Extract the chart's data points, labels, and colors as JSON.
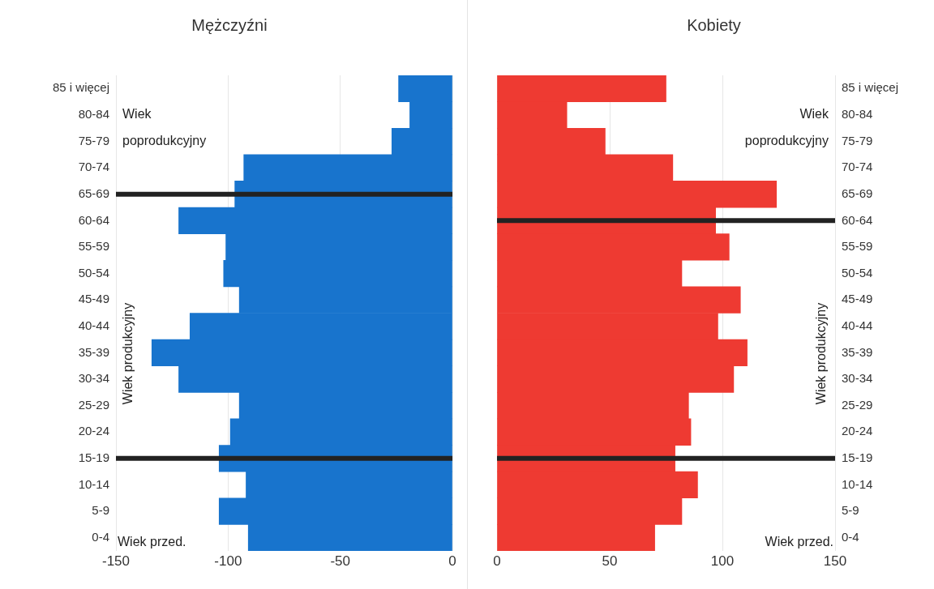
{
  "chart_data": [
    {
      "type": "bar",
      "orientation": "horizontal",
      "title": "Mężczyźni",
      "categories": [
        "85 i więcej",
        "80-84",
        "75-79",
        "70-74",
        "65-69",
        "60-64",
        "55-59",
        "50-54",
        "45-49",
        "40-44",
        "35-39",
        "30-34",
        "25-29",
        "20-24",
        "15-19",
        "10-14",
        "5-9",
        "0-4"
      ],
      "values": [
        -24,
        -19,
        -27,
        -93,
        -97,
        -122,
        -101,
        -102,
        -95,
        -117,
        -134,
        -122,
        -95,
        -99,
        -104,
        -92,
        -104,
        -91
      ],
      "color": "#1874cd",
      "xlim": [
        -150,
        0
      ],
      "xticks": [
        -150,
        -100,
        -50,
        0
      ],
      "grid": "x",
      "ref_lines": [
        {
          "axis": "y",
          "value": "65-69",
          "color": "#222222"
        },
        {
          "axis": "y",
          "value": "15-19",
          "color": "#222222"
        }
      ],
      "annotations": [
        "Wiek poprodukcyjny",
        "Wiek produkcyjny",
        "Wiek przed."
      ]
    },
    {
      "type": "bar",
      "orientation": "horizontal",
      "title": "Kobiety",
      "categories": [
        "85 i więcej",
        "80-84",
        "75-79",
        "70-74",
        "65-69",
        "60-64",
        "55-59",
        "50-54",
        "45-49",
        "40-44",
        "35-39",
        "30-34",
        "25-29",
        "20-24",
        "15-19",
        "10-14",
        "5-9",
        "0-4"
      ],
      "values": [
        75,
        31,
        48,
        78,
        124,
        97,
        103,
        82,
        108,
        98,
        111,
        105,
        85,
        86,
        79,
        89,
        82,
        70
      ],
      "color": "#ee3a32",
      "xlim": [
        0,
        150
      ],
      "xticks": [
        0,
        50,
        100,
        150
      ],
      "grid": "x",
      "ref_lines": [
        {
          "axis": "y",
          "value": "60-64",
          "color": "#222222"
        },
        {
          "axis": "y",
          "value": "15-19",
          "color": "#222222"
        }
      ],
      "annotations": [
        "Wiek poprodukcyjny",
        "Wiek produkcyjny",
        "Wiek przed."
      ]
    }
  ]
}
